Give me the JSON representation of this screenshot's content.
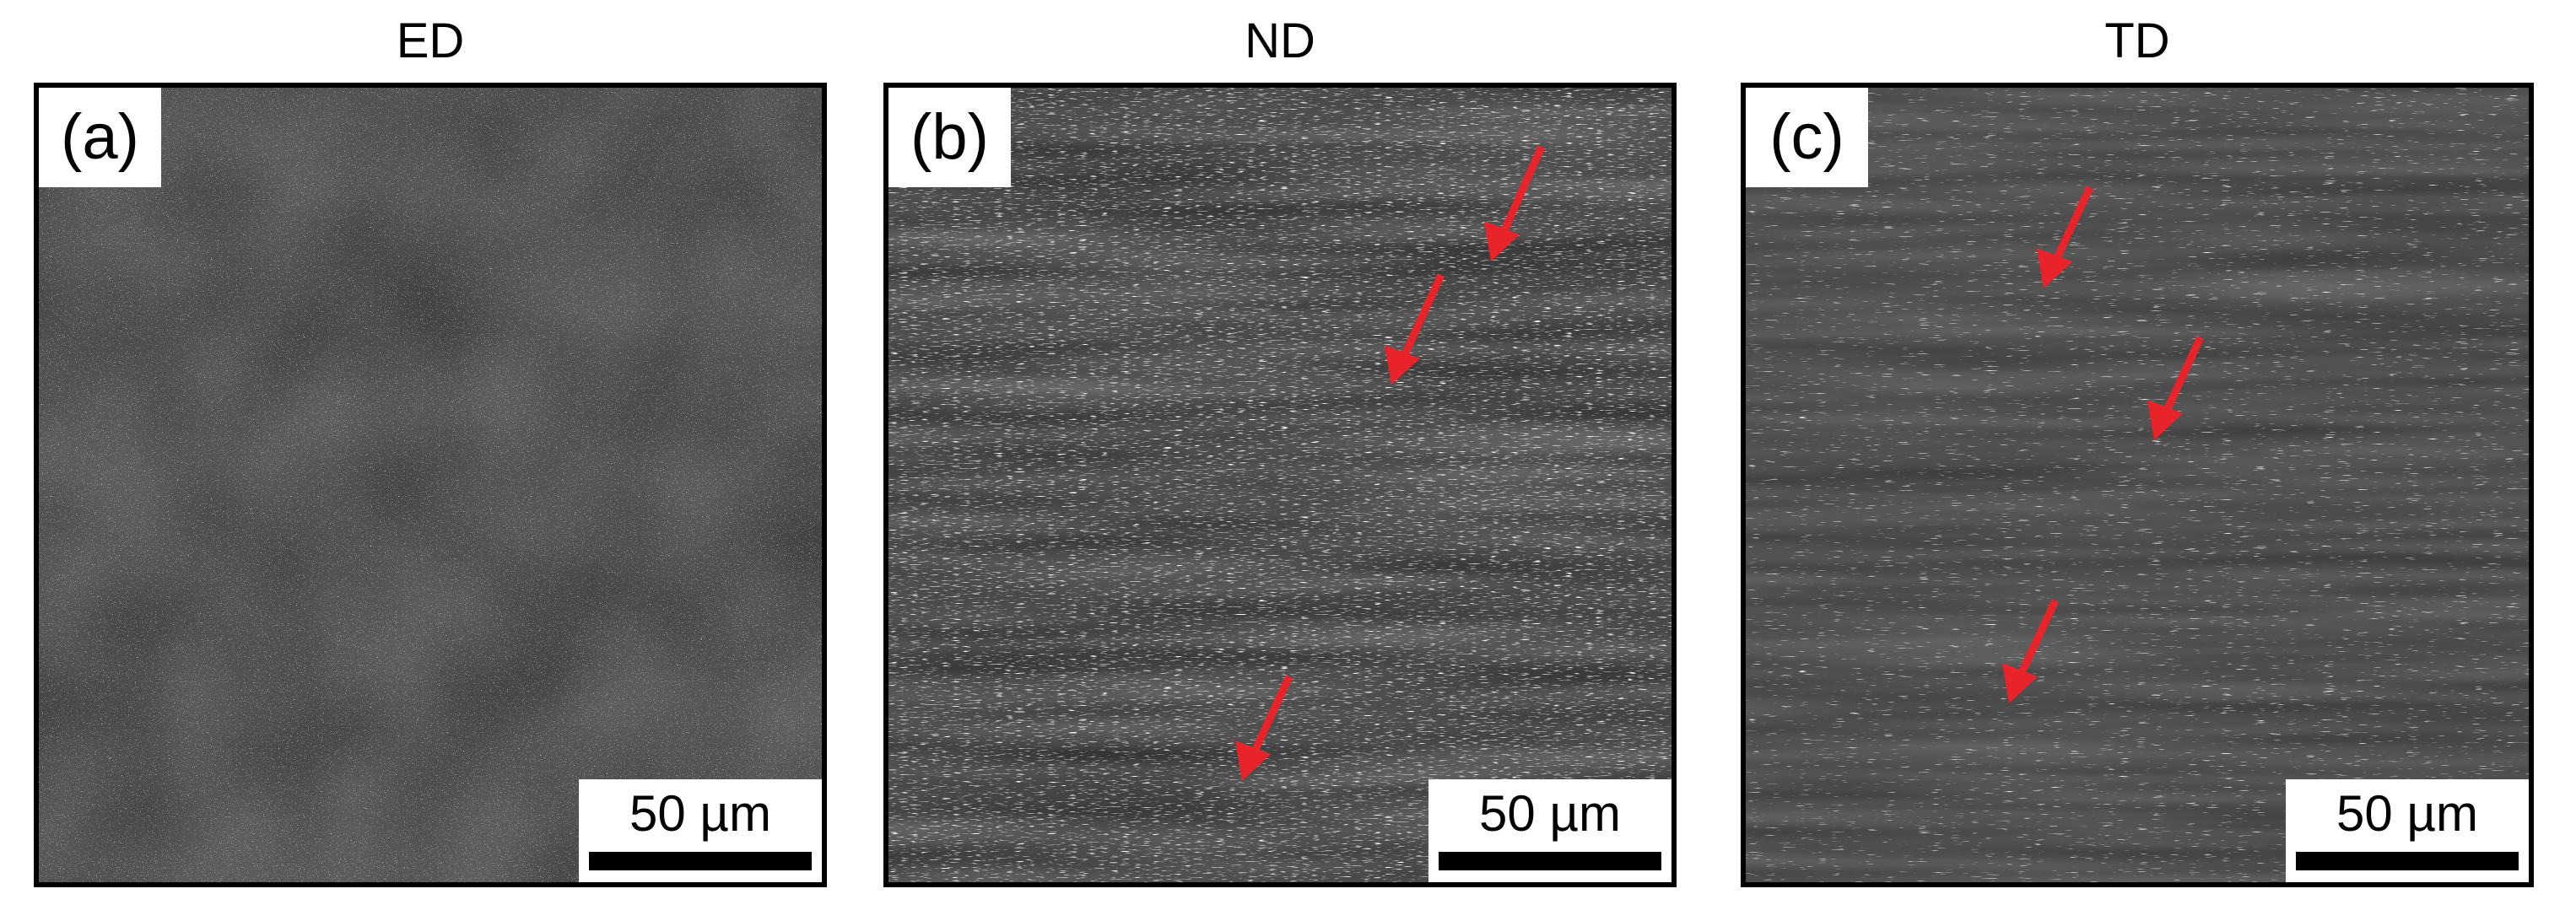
{
  "panels": [
    {
      "title": "ED",
      "label": "(a)",
      "scale_bar_text": "50 µm",
      "arrows": []
    },
    {
      "title": "ND",
      "label": "(b)",
      "scale_bar_text": "50 µm",
      "arrows": [
        "red-arrow",
        "red-arrow",
        "red-arrow"
      ]
    },
    {
      "title": "TD",
      "label": "(c)",
      "scale_bar_text": "50 µm",
      "arrows": [
        "red-arrow",
        "red-arrow",
        "red-arrow"
      ]
    }
  ],
  "colors": {
    "arrow": "#e8242a",
    "frame": "#000000",
    "micrograph_base_a": "#3b3b3b",
    "micrograph_base_b": "#2c2c2c",
    "micrograph_base_c": "#363636"
  }
}
